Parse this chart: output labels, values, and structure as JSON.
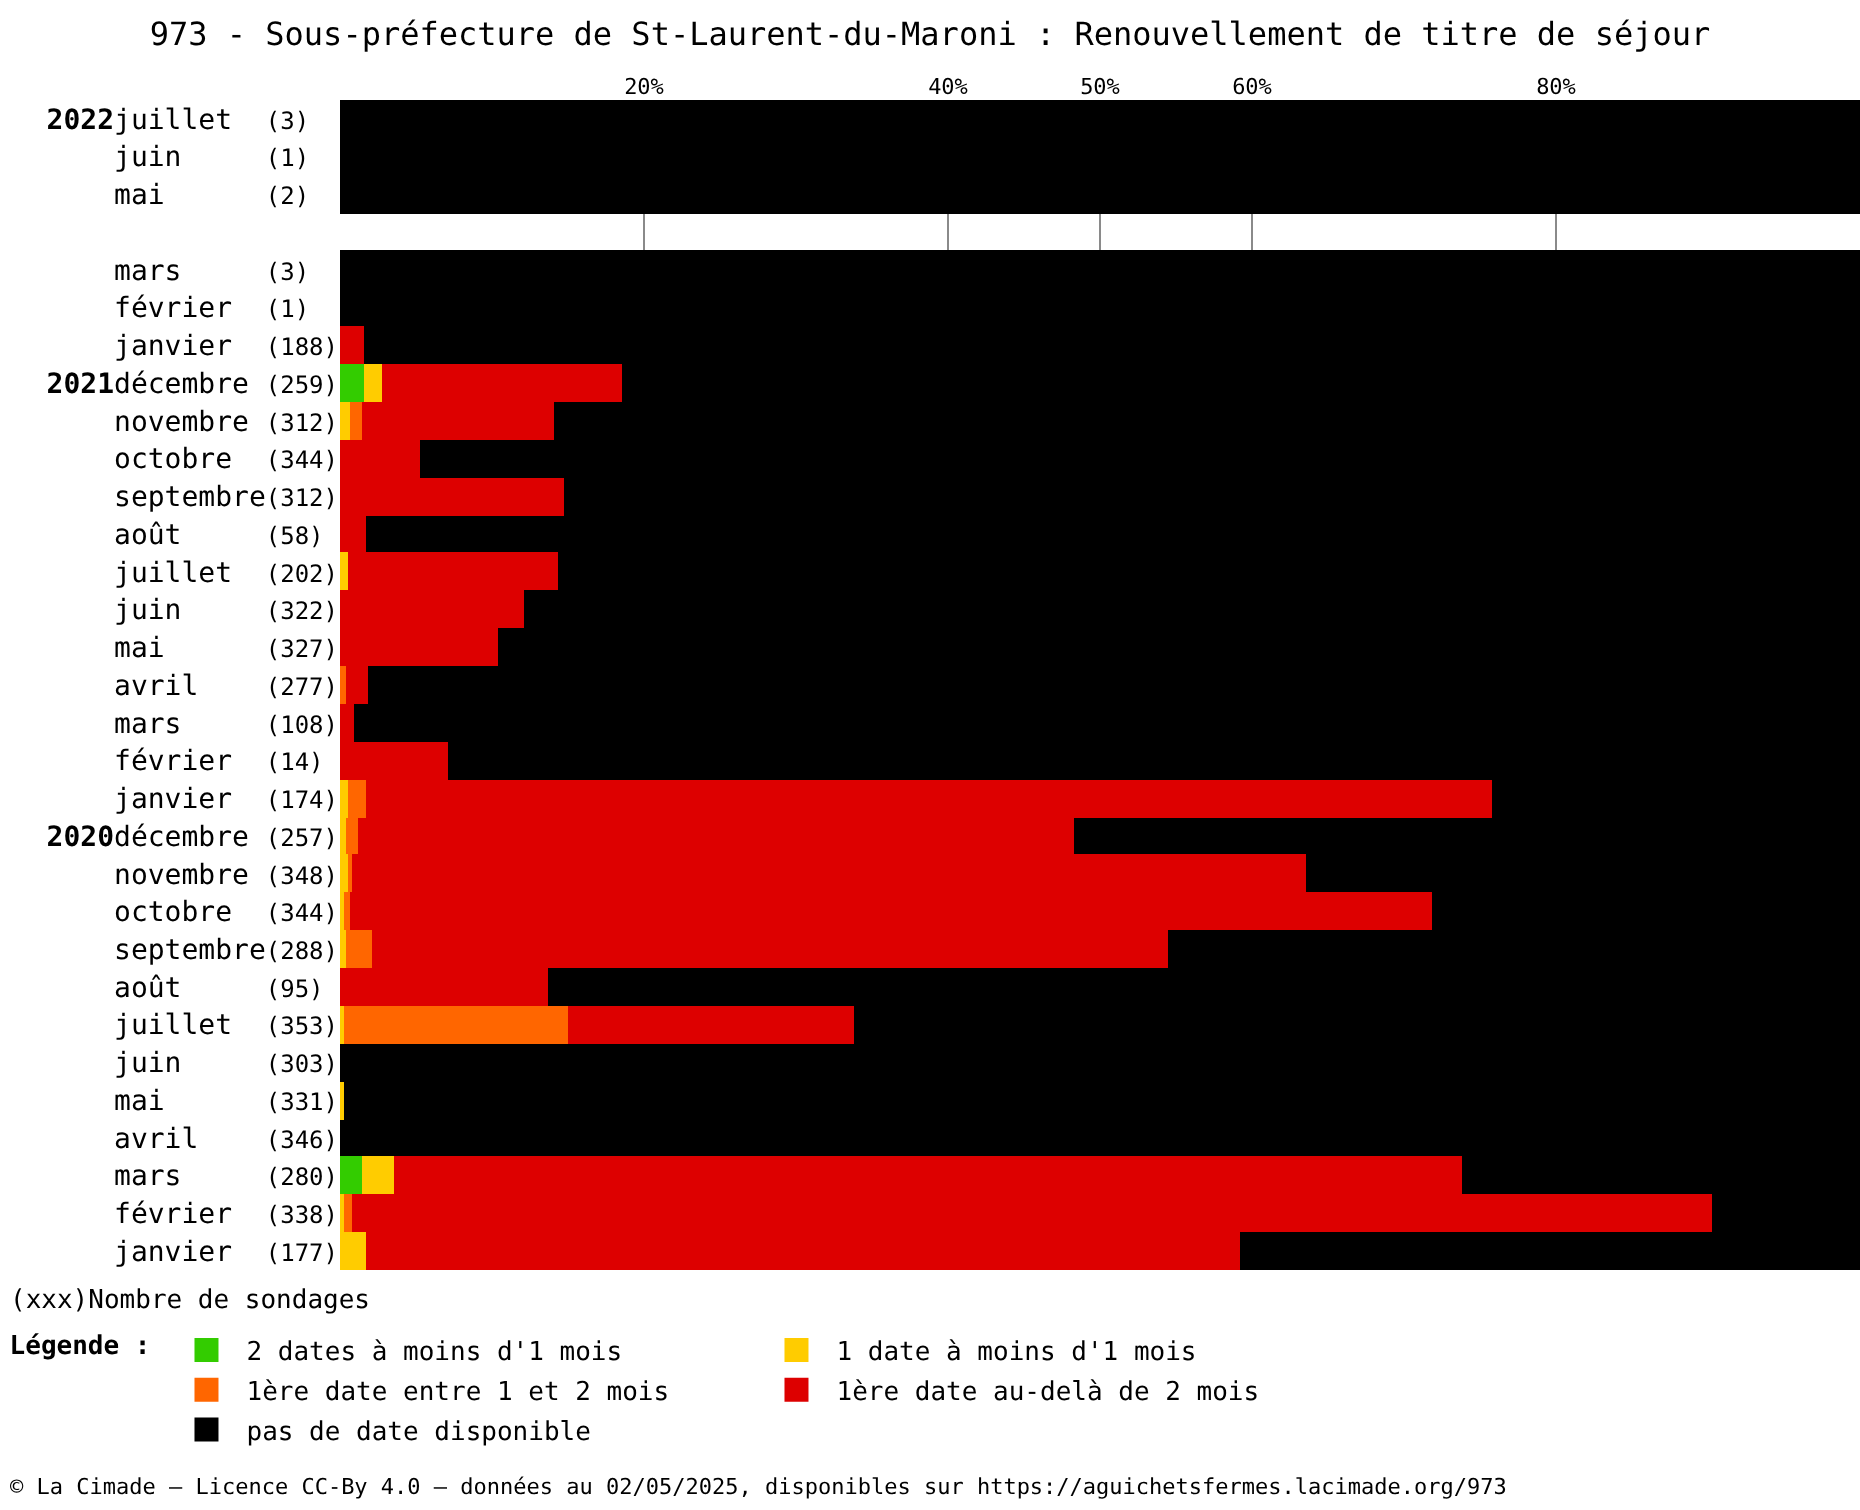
{
  "chart_data": {
    "type": "bar",
    "orientation": "horizontal",
    "stacked": true,
    "title": "973 - Sous-préfecture de St-Laurent-du-Maroni : Renouvellement de titre de séjour",
    "categories": [
      "2022juillet (3)",
      "juin (1)",
      "mai (2)",
      null,
      "mars (3)",
      "février (1)",
      "janvier (188)",
      "2021décembre (259)",
      "novembre (312)",
      "octobre (344)",
      "septembre(312)",
      "août (58)",
      "juillet (202)",
      "juin (322)",
      "mai (327)",
      "avril (277)",
      "mars (108)",
      "février (14)",
      "janvier (174)",
      "2020décembre (257)",
      "novembre (348)",
      "octobre (344)",
      "septembre(288)",
      "août (95)",
      "juillet (353)",
      "juin (303)",
      "mai (331)",
      "avril (346)",
      "mars (280)",
      "février (338)",
      "janvier (177)"
    ],
    "series": [
      {
        "name": "2 dates à moins d'1 mois",
        "color": "#33cc00",
        "values": [
          0,
          0,
          0,
          null,
          0,
          0,
          0,
          1.6,
          0,
          0,
          0,
          0,
          0,
          0,
          0,
          0,
          0,
          0,
          0,
          0,
          0,
          0,
          0,
          0,
          0,
          0,
          0,
          0,
          1.4,
          0,
          0
        ]
      },
      {
        "name": "1 date à moins d'1 mois",
        "color": "#ffcc00",
        "values": [
          0,
          0,
          0,
          null,
          0,
          0,
          0,
          1.2,
          0.7,
          0,
          0,
          0,
          0.5,
          0,
          0,
          0,
          0,
          0,
          0.5,
          0.4,
          0.5,
          0.3,
          0.4,
          0,
          0.3,
          0,
          0.3,
          0,
          2.1,
          0.3,
          1.7
        ]
      },
      {
        "name": "1ère date entre 1 et 2 mois",
        "color": "#ff6600",
        "values": [
          0,
          0,
          0,
          null,
          0,
          0,
          0,
          0,
          0.7,
          0,
          0,
          0,
          0,
          0,
          0,
          0.4,
          0,
          0,
          1.2,
          0.8,
          0.3,
          0.3,
          1.7,
          0,
          14.7,
          0,
          0,
          0,
          0,
          0.5,
          0
        ]
      },
      {
        "name": "1ère date au-delà de 2 mois",
        "color": "#dd0000",
        "values": [
          0,
          0,
          0,
          null,
          0,
          0,
          1.6,
          15.8,
          12.7,
          5.3,
          14.7,
          1.7,
          13.8,
          12.1,
          10.4,
          1.4,
          0.9,
          7.1,
          74.1,
          47.1,
          62.8,
          71.3,
          52.4,
          13.7,
          18.8,
          0,
          0,
          0,
          70.3,
          89.5,
          57.5
        ]
      },
      {
        "name": "pas de date disponible",
        "color": "#000000",
        "values": [
          100,
          100,
          100,
          null,
          100,
          100,
          98.4,
          81.4,
          85.9,
          94.7,
          85.3,
          98.3,
          85.7,
          87.9,
          89.6,
          98.2,
          99.1,
          92.9,
          24.2,
          51.7,
          36.4,
          28.1,
          45.5,
          86.3,
          66.2,
          100,
          99.7,
          100,
          26.2,
          9.7,
          40.8
        ]
      }
    ],
    "xlim": [
      0,
      100
    ],
    "xticks": [
      {
        "value": 20,
        "label": "20%"
      },
      {
        "value": 40,
        "label": "40%"
      },
      {
        "value": 50,
        "label": "50%"
      },
      {
        "value": 60,
        "label": "60%"
      },
      {
        "value": 80,
        "label": "80%"
      }
    ],
    "grid": "x",
    "legend": "bottom",
    "legend_title": "Légende :",
    "annotations": [
      "(xxx)Nombre de sondages",
      "© La Cimade – Licence CC-By 4.0 – données au 02/05/2025, disponibles sur https://aguichetsfermes.lacimade.org/973"
    ]
  }
}
